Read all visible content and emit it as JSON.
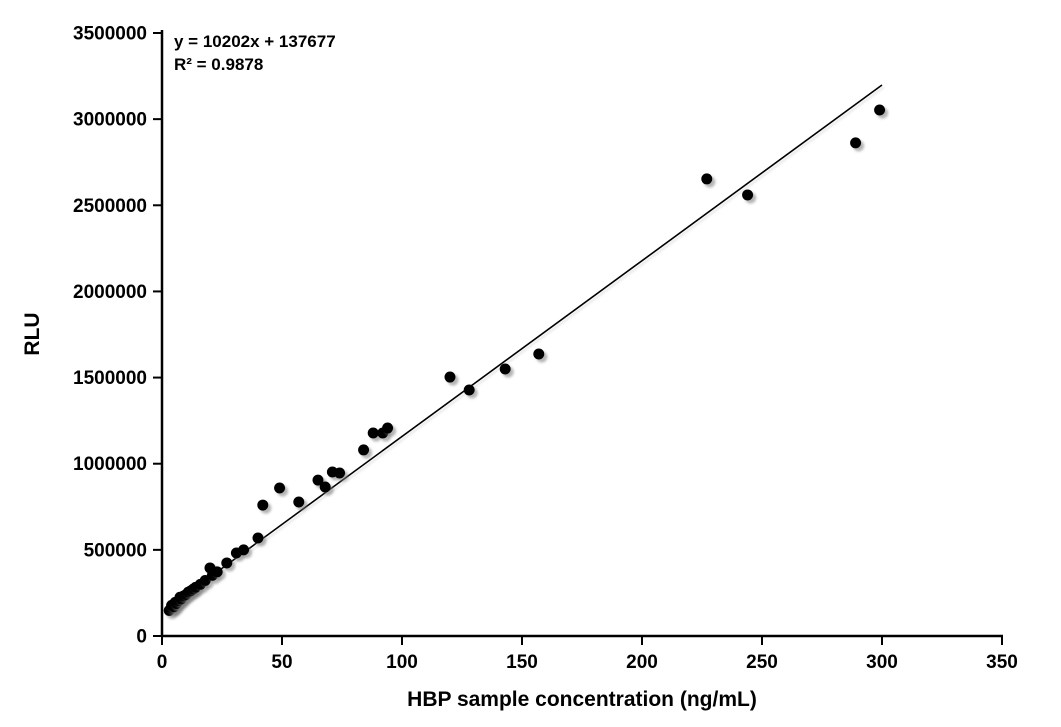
{
  "chart_data": {
    "type": "scatter",
    "title": "",
    "xlabel": "HBP sample concentration (ng/mL)",
    "ylabel": "RLU",
    "annotation": {
      "equation": "y = 10202x + 137677",
      "r_squared": "R² = 0.9878"
    },
    "trendline": {
      "slope": 10202,
      "intercept": 137677,
      "x_start": 2,
      "x_end": 300,
      "color": "#000000"
    },
    "xlim": [
      0,
      350
    ],
    "ylim": [
      0,
      3500000
    ],
    "x_ticks": [
      0,
      50,
      100,
      150,
      200,
      250,
      300,
      350
    ],
    "y_ticks": [
      0,
      500000,
      1000000,
      1500000,
      2000000,
      2500000,
      3000000,
      3500000
    ],
    "grid": false,
    "legend": "none",
    "marker_color": "#000000",
    "marker_radius": 5.5,
    "points": [
      [
        3,
        148000
      ],
      [
        4,
        162000
      ],
      [
        4,
        178000
      ],
      [
        5,
        170000
      ],
      [
        5.5,
        195000
      ],
      [
        6,
        188000
      ],
      [
        7,
        205000
      ],
      [
        7.5,
        225000
      ],
      [
        8,
        215000
      ],
      [
        9,
        232000
      ],
      [
        10,
        240000
      ],
      [
        11,
        255000
      ],
      [
        12,
        262000
      ],
      [
        13,
        272000
      ],
      [
        14,
        282000
      ],
      [
        16,
        300000
      ],
      [
        18,
        322000
      ],
      [
        20,
        395000
      ],
      [
        21,
        352000
      ],
      [
        23,
        372000
      ],
      [
        27,
        424000
      ],
      [
        31,
        482000
      ],
      [
        34,
        500000
      ],
      [
        40,
        569000
      ],
      [
        42,
        760000
      ],
      [
        49,
        859000
      ],
      [
        57,
        778000
      ],
      [
        65,
        905000
      ],
      [
        68,
        865000
      ],
      [
        71,
        952000
      ],
      [
        74,
        946000
      ],
      [
        84,
        1080000
      ],
      [
        88,
        1178000
      ],
      [
        92,
        1178000
      ],
      [
        94,
        1207000
      ],
      [
        120,
        1503000
      ],
      [
        128,
        1428000
      ],
      [
        143,
        1550000
      ],
      [
        157,
        1637000
      ],
      [
        227,
        2653000
      ],
      [
        244,
        2560000
      ],
      [
        289,
        2862000
      ],
      [
        299,
        3053000
      ]
    ]
  }
}
